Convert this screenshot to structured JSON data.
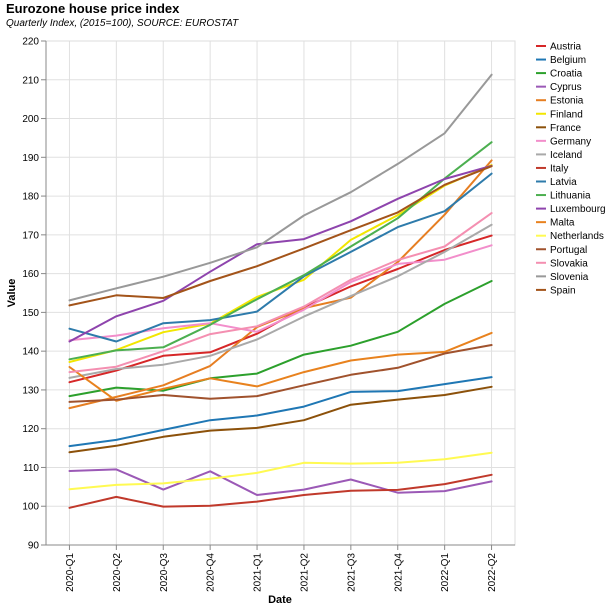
{
  "chart_data": {
    "type": "line",
    "title": "Eurozone house price index",
    "subtitle": "Quarterly Index, (2015=100), SOURCE: EUROSTAT",
    "xlabel": "Date",
    "ylabel": "Value",
    "ylim": [
      90,
      220
    ],
    "yticks": [
      90,
      100,
      110,
      120,
      130,
      140,
      150,
      160,
      170,
      180,
      190,
      200,
      210,
      220
    ],
    "grid": true,
    "legend_position": "right",
    "categories": [
      "2020-Q1",
      "2020-Q2",
      "2020-Q3",
      "2020-Q4",
      "2021-Q1",
      "2021-Q2",
      "2021-Q3",
      "2021-Q4",
      "2022-Q1",
      "2022-Q2"
    ],
    "series": [
      {
        "name": "Austria",
        "color": "#d62728",
        "values": [
          132.0,
          135.0,
          138.8,
          139.7,
          144.5,
          151.2,
          156.7,
          161.2,
          166.1,
          169.8
        ]
      },
      {
        "name": "Belgium",
        "color": "#1f77b4",
        "values": [
          115.5,
          117.1,
          119.7,
          122.2,
          123.4,
          125.7,
          129.5,
          129.7,
          131.5,
          133.3
        ]
      },
      {
        "name": "Croatia",
        "color": "#2ca02c",
        "values": [
          128.4,
          130.6,
          129.8,
          133.0,
          134.2,
          139.1,
          141.4,
          145.0,
          152.2,
          158.1
        ]
      },
      {
        "name": "Cyprus",
        "color": "#9b59b6",
        "values": [
          109.1,
          109.5,
          104.3,
          109.0,
          102.9,
          104.3,
          106.9,
          103.5,
          103.9,
          106.4
        ]
      },
      {
        "name": "Estonia",
        "color": "#e67e22",
        "values": [
          125.3,
          128.2,
          131.2,
          136.2,
          146.2,
          151.1,
          153.8,
          163.0,
          175.2,
          189.2
        ]
      },
      {
        "name": "Finland",
        "color": "#f2e600",
        "values": [
          137.2,
          140.3,
          144.9,
          147.1,
          154.0,
          158.4,
          168.7,
          175.1,
          182.7,
          188.0
        ]
      },
      {
        "name": "France",
        "color": "#8c510a",
        "values": [
          113.9,
          115.6,
          117.9,
          119.5,
          120.2,
          122.2,
          126.2,
          127.5,
          128.7,
          130.8
        ]
      },
      {
        "name": "Germany",
        "color": "#f28ecb",
        "values": [
          142.8,
          144.0,
          145.9,
          147.2,
          145.0,
          150.7,
          157.8,
          162.5,
          163.6,
          167.3
        ]
      },
      {
        "name": "Iceland",
        "color": "#a9a9a9",
        "values": [
          133.1,
          135.4,
          136.5,
          138.8,
          143.0,
          148.9,
          154.2,
          159.3,
          165.6,
          172.6
        ]
      },
      {
        "name": "Italy",
        "color": "#c0392b",
        "values": [
          99.6,
          102.4,
          99.9,
          100.1,
          101.2,
          102.9,
          104.0,
          104.2,
          105.7,
          108.1
        ]
      },
      {
        "name": "Latvia",
        "color": "#2e7bab",
        "values": [
          145.8,
          142.5,
          147.2,
          148.0,
          150.2,
          159.3,
          165.6,
          172.0,
          176.1,
          185.8
        ]
      },
      {
        "name": "Lithuania",
        "color": "#4caf50",
        "values": [
          137.9,
          140.2,
          141.0,
          146.8,
          153.4,
          159.6,
          167.0,
          174.3,
          184.5,
          193.9
        ]
      },
      {
        "name": "Luxembourg",
        "color": "#8e44ad",
        "values": [
          142.5,
          149.0,
          153.0,
          160.5,
          167.6,
          168.9,
          173.5,
          179.3,
          184.4,
          187.8
        ]
      },
      {
        "name": "Malta",
        "color": "#e8821e",
        "values": [
          135.9,
          127.2,
          130.3,
          133.0,
          130.9,
          134.6,
          137.6,
          139.1,
          139.8,
          144.7
        ]
      },
      {
        "name": "Netherlands",
        "color": "#fffa52",
        "values": [
          104.4,
          105.5,
          105.9,
          107.1,
          108.6,
          111.2,
          111.0,
          111.2,
          112.1,
          113.8
        ]
      },
      {
        "name": "Portugal",
        "color": "#a0522d",
        "values": [
          126.9,
          127.5,
          128.7,
          127.7,
          128.4,
          131.2,
          133.9,
          135.7,
          139.4,
          141.6
        ]
      },
      {
        "name": "Slovakia",
        "color": "#f48fb1",
        "values": [
          134.6,
          136.0,
          140.0,
          144.4,
          146.4,
          151.5,
          158.4,
          163.5,
          167.0,
          175.6
        ]
      },
      {
        "name": "Slovenia",
        "color": "#999999",
        "values": [
          153.1,
          156.2,
          159.2,
          162.8,
          166.8,
          175.0,
          181.0,
          188.3,
          196.2,
          211.3
        ]
      },
      {
        "name": "Spain",
        "color": "#a3541a",
        "values": [
          151.8,
          154.4,
          153.7,
          158.1,
          161.9,
          166.5,
          171.2,
          175.8,
          182.9,
          187.7
        ]
      }
    ]
  }
}
